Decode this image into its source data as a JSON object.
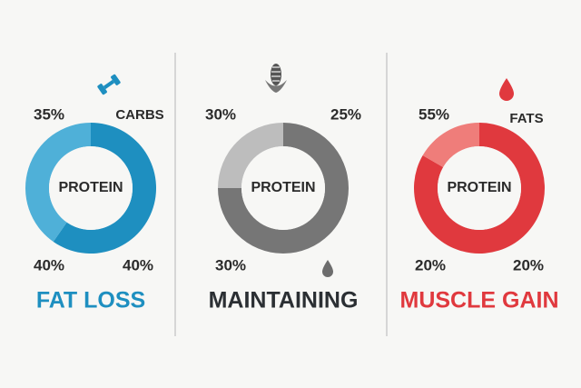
{
  "panels": [
    {
      "labels": [
        "35%",
        "CARBS",
        "40%",
        "40%"
      ],
      "center_label": "PROTEIN",
      "title": "FAT LOSS"
    },
    {
      "labels": [
        "30%",
        "25%",
        "30%"
      ],
      "center_label": "PROTEIN",
      "title": "MAINTAINING"
    },
    {
      "labels": [
        "55%",
        "FATS",
        "20%",
        "20%"
      ],
      "center_label": "PROTEIN",
      "title": "MUSCLE GAIN"
    }
  ]
}
